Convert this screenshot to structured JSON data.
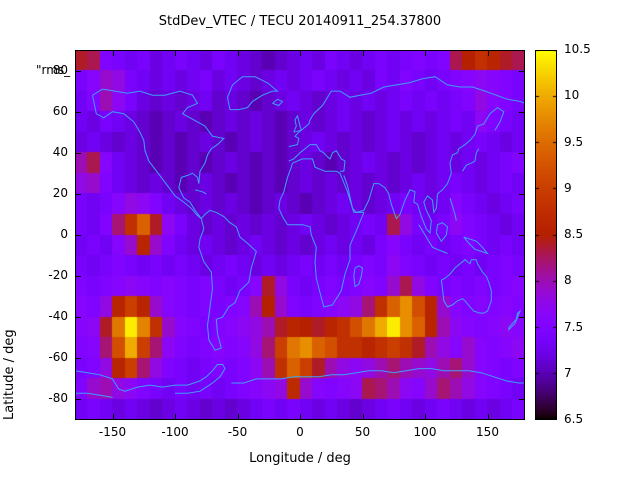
{
  "title": "StdDev_VTEC / TECU 20140911_254.37800",
  "key_label": "\"rms_",
  "axes": {
    "x": {
      "label": "Longitude / deg",
      "range": [
        -180,
        180
      ],
      "ticks": [
        -150,
        -100,
        -50,
        0,
        50,
        100,
        150
      ]
    },
    "y": {
      "label": "Latitude / deg",
      "range": [
        -90,
        90
      ],
      "ticks": [
        80,
        60,
        40,
        20,
        0,
        -20,
        -40,
        -60,
        -80
      ]
    }
  },
  "colorbar": {
    "min": 6.5,
    "max": 10.5,
    "ticks": [
      10.5,
      10,
      9.5,
      9,
      8.5,
      8,
      7.5,
      7,
      6.5
    ]
  },
  "colors": {
    "background": "#ffffff",
    "coastline": "#3fa0ff",
    "text": "#000000",
    "frame": "#000000"
  },
  "chart_data": {
    "type": "heatmap",
    "title": "StdDev_VTEC / TECU 20140911_254.37800",
    "xlabel": "Longitude / deg",
    "ylabel": "Latitude / deg",
    "xlim": [
      -180,
      180
    ],
    "ylim": [
      -90,
      90
    ],
    "zlim": [
      6.5,
      10.5
    ],
    "palette": "gnuplot pm3d rgbformulae 7,5,15 black-purple-red-orange-yellow",
    "legend_position": "right colorbox",
    "grid": false,
    "lon_centers": [
      -175,
      -165,
      -155,
      -145,
      -135,
      -125,
      -115,
      -105,
      -95,
      -85,
      -75,
      -65,
      -55,
      -45,
      -35,
      -25,
      -15,
      -5,
      5,
      15,
      25,
      35,
      45,
      55,
      65,
      75,
      85,
      95,
      105,
      115,
      125,
      135,
      145,
      155,
      165,
      175
    ],
    "lat_centers": [
      85,
      75,
      65,
      55,
      45,
      35,
      25,
      15,
      5,
      -5,
      -15,
      -25,
      -35,
      -45,
      -55,
      -65,
      -75,
      -85
    ],
    "values": [
      [
        8.4,
        8.3,
        7.5,
        7.4,
        7.3,
        7.4,
        7.2,
        7.3,
        7.4,
        7.3,
        7.2,
        7.4,
        7.3,
        7.2,
        7.1,
        7.0,
        7.1,
        7.2,
        7.3,
        7.2,
        7.4,
        7.3,
        7.2,
        7.3,
        7.4,
        7.3,
        7.4,
        7.5,
        7.4,
        7.5,
        8.3,
        8.5,
        8.8,
        8.6,
        8.4,
        8.3
      ],
      [
        7.4,
        7.6,
        7.9,
        7.8,
        7.4,
        7.3,
        7.2,
        7.3,
        7.2,
        7.3,
        7.4,
        7.2,
        7.3,
        7.2,
        7.1,
        7.2,
        7.3,
        7.2,
        7.3,
        7.4,
        7.3,
        7.2,
        7.3,
        7.2,
        7.4,
        7.3,
        7.5,
        7.4,
        7.3,
        7.4,
        7.5,
        7.6,
        7.7,
        7.6,
        7.5,
        7.4
      ],
      [
        7.3,
        7.5,
        8.0,
        7.7,
        7.4,
        7.2,
        7.1,
        7.2,
        7.1,
        7.2,
        7.3,
        7.1,
        7.2,
        7.1,
        7.0,
        7.1,
        7.2,
        7.3,
        7.2,
        7.1,
        7.2,
        7.3,
        7.2,
        7.3,
        7.2,
        7.3,
        7.4,
        7.3,
        7.4,
        7.3,
        7.4,
        7.5,
        7.8,
        7.6,
        7.5,
        7.4
      ],
      [
        7.3,
        7.2,
        7.4,
        7.3,
        7.2,
        7.1,
        7.0,
        7.1,
        7.2,
        7.1,
        7.0,
        7.1,
        7.2,
        7.1,
        7.2,
        7.1,
        7.0,
        7.1,
        7.2,
        7.1,
        7.2,
        7.3,
        7.2,
        7.1,
        7.2,
        7.3,
        7.2,
        7.3,
        7.2,
        7.3,
        7.4,
        7.3,
        7.7,
        7.5,
        7.4,
        7.3
      ],
      [
        7.2,
        7.3,
        7.2,
        7.1,
        7.2,
        7.1,
        7.0,
        7.1,
        7.0,
        7.1,
        7.2,
        7.1,
        7.0,
        7.1,
        7.2,
        7.1,
        7.0,
        7.1,
        7.2,
        7.3,
        7.2,
        7.1,
        7.2,
        7.1,
        7.2,
        7.3,
        7.2,
        7.1,
        7.2,
        7.3,
        7.2,
        7.3,
        7.4,
        7.3,
        7.2,
        7.3
      ],
      [
        8.0,
        8.3,
        7.6,
        7.3,
        7.2,
        7.1,
        7.0,
        7.1,
        7.0,
        7.1,
        7.0,
        7.1,
        7.2,
        7.1,
        7.0,
        7.1,
        7.0,
        7.1,
        7.2,
        7.1,
        7.0,
        7.1,
        7.2,
        7.3,
        7.2,
        7.1,
        7.2,
        7.1,
        7.2,
        7.3,
        7.2,
        7.3,
        7.2,
        7.3,
        7.4,
        7.5
      ],
      [
        7.8,
        7.9,
        7.5,
        7.3,
        7.2,
        7.1,
        7.2,
        7.1,
        7.0,
        7.1,
        7.2,
        7.1,
        7.0,
        7.1,
        7.0,
        7.1,
        7.0,
        7.1,
        7.2,
        7.1,
        7.2,
        7.1,
        7.2,
        7.1,
        7.2,
        7.1,
        7.2,
        7.3,
        7.2,
        7.3,
        7.4,
        7.3,
        7.2,
        7.3,
        7.4,
        7.3
      ],
      [
        7.4,
        7.3,
        7.4,
        7.6,
        7.8,
        7.7,
        7.5,
        7.3,
        7.2,
        7.1,
        7.2,
        7.1,
        7.2,
        7.1,
        7.0,
        7.1,
        7.2,
        7.1,
        7.0,
        7.1,
        7.2,
        7.3,
        7.2,
        7.1,
        7.2,
        7.3,
        7.4,
        7.3,
        7.2,
        7.3,
        7.6,
        7.4,
        7.3,
        7.2,
        7.3,
        7.4
      ],
      [
        7.4,
        7.3,
        7.5,
        8.2,
        8.8,
        9.4,
        8.4,
        7.7,
        7.4,
        7.2,
        7.1,
        7.2,
        7.1,
        7.2,
        7.1,
        7.2,
        7.1,
        7.2,
        7.3,
        7.2,
        7.1,
        7.2,
        7.3,
        7.4,
        7.3,
        8.3,
        7.8,
        7.4,
        7.3,
        7.4,
        7.7,
        7.5,
        7.4,
        7.3,
        7.2,
        7.3
      ],
      [
        7.3,
        7.4,
        7.3,
        7.6,
        7.9,
        8.6,
        7.9,
        7.5,
        7.3,
        7.2,
        7.3,
        7.2,
        7.1,
        7.2,
        7.3,
        7.2,
        7.1,
        7.2,
        7.1,
        7.2,
        7.3,
        7.2,
        7.3,
        7.2,
        7.4,
        7.6,
        7.4,
        7.3,
        7.4,
        7.3,
        7.4,
        7.5,
        7.4,
        7.3,
        7.4,
        7.3
      ],
      [
        7.4,
        7.3,
        7.4,
        7.5,
        7.4,
        7.3,
        7.4,
        7.3,
        7.4,
        7.3,
        7.2,
        7.3,
        7.4,
        7.3,
        7.2,
        7.3,
        7.2,
        7.3,
        7.4,
        7.3,
        7.4,
        7.3,
        7.4,
        7.5,
        7.4,
        7.7,
        7.5,
        7.4,
        7.3,
        7.4,
        7.3,
        7.4,
        7.3,
        7.4,
        7.5,
        7.4
      ],
      [
        7.5,
        7.4,
        7.5,
        7.6,
        7.7,
        7.6,
        7.5,
        7.6,
        7.5,
        7.4,
        7.5,
        7.4,
        7.3,
        7.4,
        7.6,
        8.4,
        7.8,
        7.4,
        7.3,
        7.4,
        7.5,
        7.4,
        7.5,
        7.6,
        7.5,
        7.9,
        8.3,
        7.8,
        7.5,
        7.4,
        7.5,
        7.4,
        7.5,
        7.4,
        7.5,
        7.6
      ],
      [
        7.6,
        7.5,
        7.8,
        8.6,
        9.0,
        8.6,
        7.9,
        7.6,
        7.5,
        7.4,
        7.5,
        7.4,
        7.5,
        7.6,
        8.0,
        8.5,
        7.9,
        7.5,
        7.4,
        7.5,
        7.6,
        7.7,
        7.8,
        8.2,
        8.8,
        9.4,
        9.8,
        9.2,
        8.6,
        7.9,
        7.6,
        7.5,
        7.6,
        7.5,
        7.6,
        7.5
      ],
      [
        7.6,
        7.7,
        8.4,
        9.6,
        10.4,
        9.7,
        8.8,
        7.9,
        7.6,
        7.5,
        7.4,
        7.5,
        7.6,
        7.7,
        7.8,
        8.0,
        8.4,
        8.6,
        8.5,
        8.4,
        8.6,
        8.8,
        9.2,
        9.6,
        10.0,
        10.4,
        9.8,
        9.4,
        8.6,
        8.0,
        7.7,
        7.6,
        7.5,
        7.6,
        7.7,
        7.6
      ],
      [
        7.5,
        7.6,
        8.2,
        9.2,
        10.0,
        9.0,
        8.2,
        7.7,
        7.5,
        7.4,
        7.5,
        7.6,
        7.5,
        7.6,
        7.8,
        8.2,
        9.0,
        9.6,
        9.8,
        9.4,
        9.2,
        8.8,
        8.8,
        8.6,
        8.8,
        9.0,
        8.8,
        8.4,
        8.0,
        7.8,
        7.6,
        7.9,
        7.6,
        7.5,
        7.6,
        7.7
      ],
      [
        7.4,
        7.5,
        7.8,
        8.6,
        9.0,
        8.2,
        7.8,
        7.5,
        7.4,
        7.3,
        7.4,
        7.5,
        7.4,
        7.5,
        7.7,
        8.0,
        8.8,
        9.4,
        9.0,
        8.4,
        8.0,
        7.8,
        7.7,
        7.8,
        8.0,
        8.2,
        8.0,
        7.9,
        7.8,
        8.0,
        8.2,
        7.9,
        7.6,
        7.5,
        7.4,
        7.5
      ],
      [
        7.5,
        7.9,
        8.0,
        7.8,
        7.7,
        7.5,
        7.4,
        7.3,
        7.4,
        7.3,
        7.4,
        7.3,
        7.4,
        7.5,
        7.6,
        7.7,
        7.8,
        8.7,
        7.9,
        7.6,
        7.5,
        7.6,
        7.7,
        8.3,
        8.2,
        8.0,
        7.7,
        7.6,
        7.9,
        8.2,
        8.0,
        7.8,
        7.6,
        7.5,
        7.4,
        7.3
      ],
      [
        7.3,
        7.4,
        7.3,
        7.2,
        7.3,
        7.2,
        7.1,
        7.2,
        7.3,
        7.2,
        7.1,
        7.2,
        7.1,
        7.2,
        7.3,
        7.4,
        7.3,
        7.4,
        7.3,
        7.2,
        7.3,
        7.2,
        7.1,
        7.2,
        7.3,
        7.4,
        7.3,
        7.2,
        7.3,
        7.4,
        7.3,
        7.2,
        7.3,
        7.2,
        7.3,
        7.4
      ]
    ]
  }
}
